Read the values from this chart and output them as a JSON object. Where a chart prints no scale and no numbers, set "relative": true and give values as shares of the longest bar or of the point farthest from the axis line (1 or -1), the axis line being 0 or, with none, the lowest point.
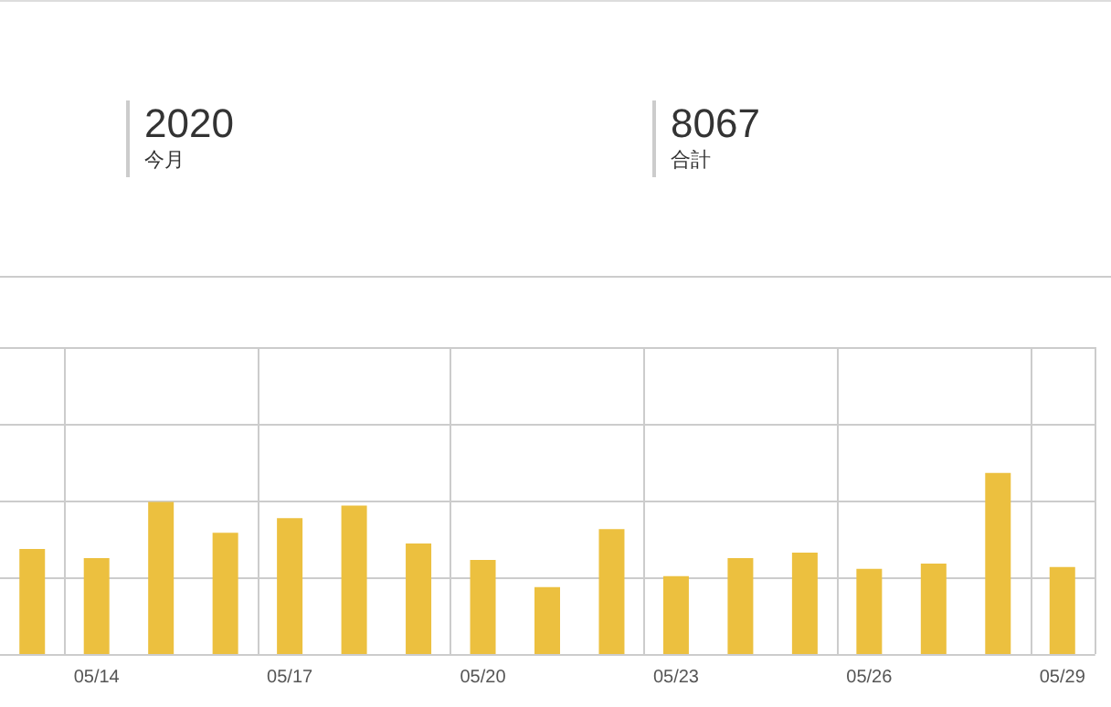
{
  "chart_data": [
    {
      "type": "other",
      "annotations": [
        "2020",
        "今月",
        "8067",
        "合計"
      ]
    },
    {
      "type": "bar",
      "categories": [
        null,
        "05/14",
        null,
        null,
        "05/17",
        null,
        null,
        "05/20",
        null,
        null,
        "05/23",
        null,
        null,
        "05/26",
        null,
        null,
        "05/29"
      ],
      "relative": true,
      "color": "#ecc03f",
      "grid": true,
      "values": [
        0.58,
        0.53,
        0.84,
        0.67,
        0.75,
        0.82,
        0.61,
        0.52,
        0.37,
        0.69,
        0.43,
        0.53,
        0.56,
        0.47,
        0.5,
        1,
        0.48
      ]
    }
  ]
}
